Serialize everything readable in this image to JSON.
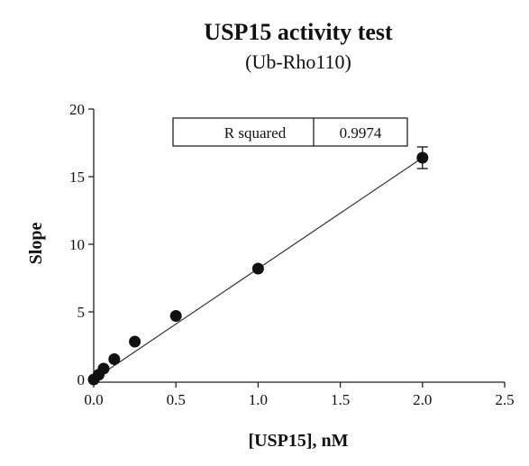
{
  "chart_data": {
    "type": "scatter",
    "title": "USP15 activity test",
    "subtitle": "(Ub-Rho110)",
    "xlabel": "[USP15], nM",
    "ylabel": "Slope",
    "xlim": [
      0,
      2.5
    ],
    "ylim": [
      0,
      20
    ],
    "x_ticks": [
      "0.0",
      "0.5",
      "1.0",
      "1.5",
      "2.0",
      "2.5"
    ],
    "y_ticks": [
      "0",
      "5",
      "10",
      "15",
      "20"
    ],
    "grid": false,
    "points": [
      {
        "x": 0.0,
        "y": 0.0
      },
      {
        "x": 0.03,
        "y": 0.35
      },
      {
        "x": 0.06,
        "y": 0.8
      },
      {
        "x": 0.125,
        "y": 1.5
      },
      {
        "x": 0.25,
        "y": 2.8
      },
      {
        "x": 0.5,
        "y": 4.7
      },
      {
        "x": 1.0,
        "y": 8.2
      },
      {
        "x": 2.0,
        "y": 16.4,
        "err": 0.8
      }
    ],
    "fit": {
      "x0": 0.0,
      "y0": 0.0,
      "x1": 2.0,
      "y1": 16.4
    },
    "stats_table": {
      "label": "R squared",
      "value": "0.9974"
    }
  }
}
